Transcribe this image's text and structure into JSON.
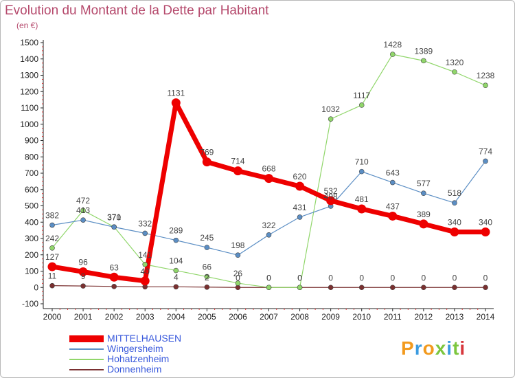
{
  "title": "Evolution du Montant de la Dette par Habitant",
  "unit": "(en €)",
  "logo": {
    "text": "Proxiti",
    "colors": [
      "#f29a1e",
      "#3a9be0",
      "#f29a1e",
      "#7cc63e",
      "#3a9be0",
      "#7cc63e",
      "#d7373c"
    ]
  },
  "chart_data": {
    "type": "line",
    "categories": [
      "2000",
      "2001",
      "2002",
      "2003",
      "2004",
      "2005",
      "2006",
      "2007",
      "2008",
      "2009",
      "2010",
      "2011",
      "2012",
      "2013",
      "2014"
    ],
    "ylim": [
      -100,
      1500
    ],
    "yticks": [
      -100,
      0,
      100,
      200,
      300,
      400,
      500,
      600,
      700,
      800,
      900,
      1000,
      1100,
      1200,
      1300,
      1400,
      1500
    ],
    "grid": false,
    "legend_position": "bottom-left",
    "series": [
      {
        "name": "MITTELHAUSEN",
        "color": "#ee0000",
        "values": [
          127,
          96,
          63,
          40,
          1131,
          769,
          714,
          668,
          620,
          532,
          481,
          437,
          389,
          340,
          340
        ],
        "labels": [
          "127",
          "96",
          "63",
          "40",
          "1131",
          "769",
          "714",
          "668",
          "620",
          "532",
          "481",
          "437",
          "389",
          "340",
          "340"
        ]
      },
      {
        "name": "Wingersheim",
        "color": "#5b8ec4",
        "values": [
          382,
          413,
          370,
          332,
          289,
          245,
          198,
          322,
          431,
          498,
          710,
          643,
          577,
          518,
          774
        ],
        "labels": [
          "382",
          "413",
          "370",
          "332",
          "289",
          "245",
          "198",
          "322",
          "431",
          "498",
          "710",
          "643",
          "577",
          "518",
          "774"
        ]
      },
      {
        "name": "Hohatzenheim",
        "color": "#90d66a",
        "values": [
          242,
          472,
          371,
          141,
          104,
          66,
          26,
          0,
          0,
          1032,
          1117,
          1428,
          1389,
          1320,
          1238
        ],
        "labels": [
          "242",
          "472",
          "371",
          "141",
          "104",
          "66",
          "26",
          "0",
          "0",
          "1032",
          "1117",
          "1428",
          "1389",
          "1320",
          "1238"
        ]
      },
      {
        "name": "Donnenheim",
        "color": "#7a3030",
        "values": [
          11,
          9,
          6,
          4,
          4,
          2,
          0,
          0,
          0,
          0,
          0,
          0,
          0,
          0,
          0
        ],
        "labels": [
          "11",
          "9",
          "",
          "",
          "4",
          "2",
          "0",
          "0",
          "0",
          "0",
          "0",
          "0",
          "0",
          "0",
          "0"
        ]
      }
    ]
  }
}
